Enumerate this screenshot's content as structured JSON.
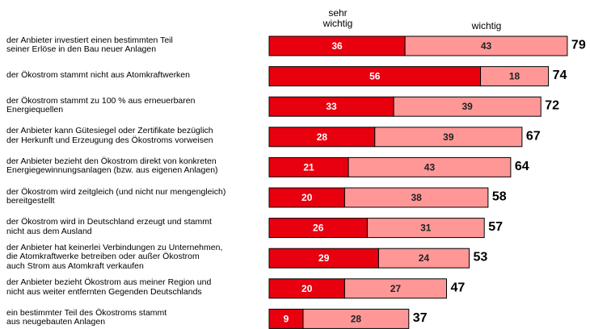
{
  "chart_data": {
    "type": "bar",
    "orientation": "horizontal",
    "stacked": true,
    "categories": [
      "der Anbieter investiert einen bestimmten Teil\nseiner Erlöse in den Bau neuer Anlagen",
      "der Ökostrom stammt nicht aus Atomkraftwerken",
      "der Ökostrom stammt zu 100 % aus erneuerbaren\nEnergiequellen",
      "der Anbieter kann Gütesiegel oder Zertifikate bezüglich\nder Herkunft und Erzeugung des Ökostroms vorweisen",
      "der Anbieter bezieht den Ökostrom direkt von konkreten\nEnergiegewinnungsanlagen (bzw. aus eigenen Anlagen)",
      "der Ökostrom wird zeitgleich (und nicht nur mengengleich)\nbereitgestellt",
      "der Ökostrom wird in Deutschland erzeugt und stammt\nnicht aus dem Ausland",
      "der Anbieter hat keinerlei Verbindungen zu Unternehmen,\ndie Atomkraftwerke betreiben oder außer Ökostrom\nauch Strom aus Atomkraft verkaufen",
      "der Anbieter bezieht Ökostrom aus meiner Region und\nnicht aus weiter entfernten Gegenden Deutschlands",
      "ein bestimmter Teil des Ökostroms stammt\naus neugebauten Anlagen"
    ],
    "series": [
      {
        "name": "sehr\nwichtig",
        "color": "#e8000f",
        "values": [
          36,
          56,
          33,
          28,
          21,
          20,
          26,
          29,
          20,
          9
        ]
      },
      {
        "name": "wichtig",
        "color": "#ff9797",
        "values": [
          43,
          18,
          39,
          39,
          43,
          38,
          31,
          24,
          27,
          28
        ]
      }
    ],
    "totals": [
      79,
      74,
      72,
      67,
      64,
      58,
      57,
      53,
      47,
      37
    ]
  }
}
